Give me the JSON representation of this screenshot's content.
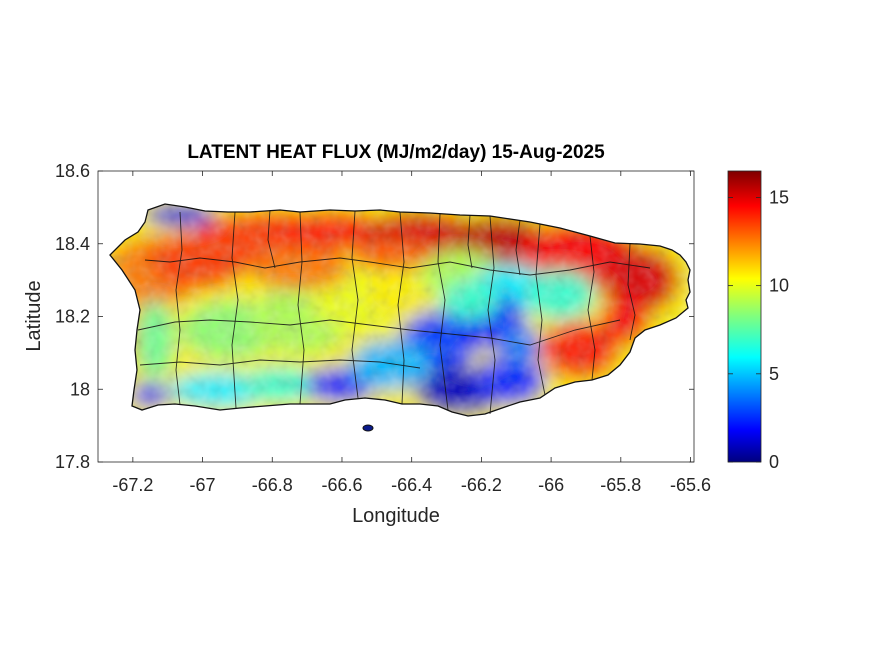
{
  "chart_data": {
    "type": "heatmap",
    "title": "LATENT HEAT FLUX (MJ/m2/day) 15-Aug-2025",
    "xlabel": "Longitude",
    "ylabel": "Latitude",
    "xlim": [
      -67.3,
      -65.59
    ],
    "ylim": [
      17.8,
      18.6
    ],
    "xticks": [
      "-67.2",
      "-67",
      "-66.8",
      "-66.6",
      "-66.4",
      "-66.2",
      "-66",
      "-65.8",
      "-65.6"
    ],
    "xtick_values": [
      -67.2,
      -67.0,
      -66.8,
      -66.6,
      -66.4,
      -66.2,
      -66.0,
      -65.8,
      -65.6
    ],
    "yticks": [
      "17.8",
      "18",
      "18.2",
      "18.4",
      "18.6"
    ],
    "ytick_values": [
      17.8,
      18.0,
      18.2,
      18.4,
      18.6
    ],
    "colorbar": {
      "colormap": "jet",
      "range": [
        0,
        16.5
      ],
      "ticks": [
        "0",
        "5",
        "10",
        "15"
      ],
      "tick_values": [
        0,
        5,
        10,
        15
      ]
    },
    "grid": false,
    "region_summary": [
      {
        "region": "northeast",
        "approx_value": 14.5
      },
      {
        "region": "north-central coast",
        "approx_value": 13.5
      },
      {
        "region": "west",
        "approx_value": 11
      },
      {
        "region": "central interior",
        "approx_value": 8
      },
      {
        "region": "south-central",
        "approx_value": 2
      },
      {
        "region": "southwest coast",
        "approx_value": 3
      }
    ]
  }
}
